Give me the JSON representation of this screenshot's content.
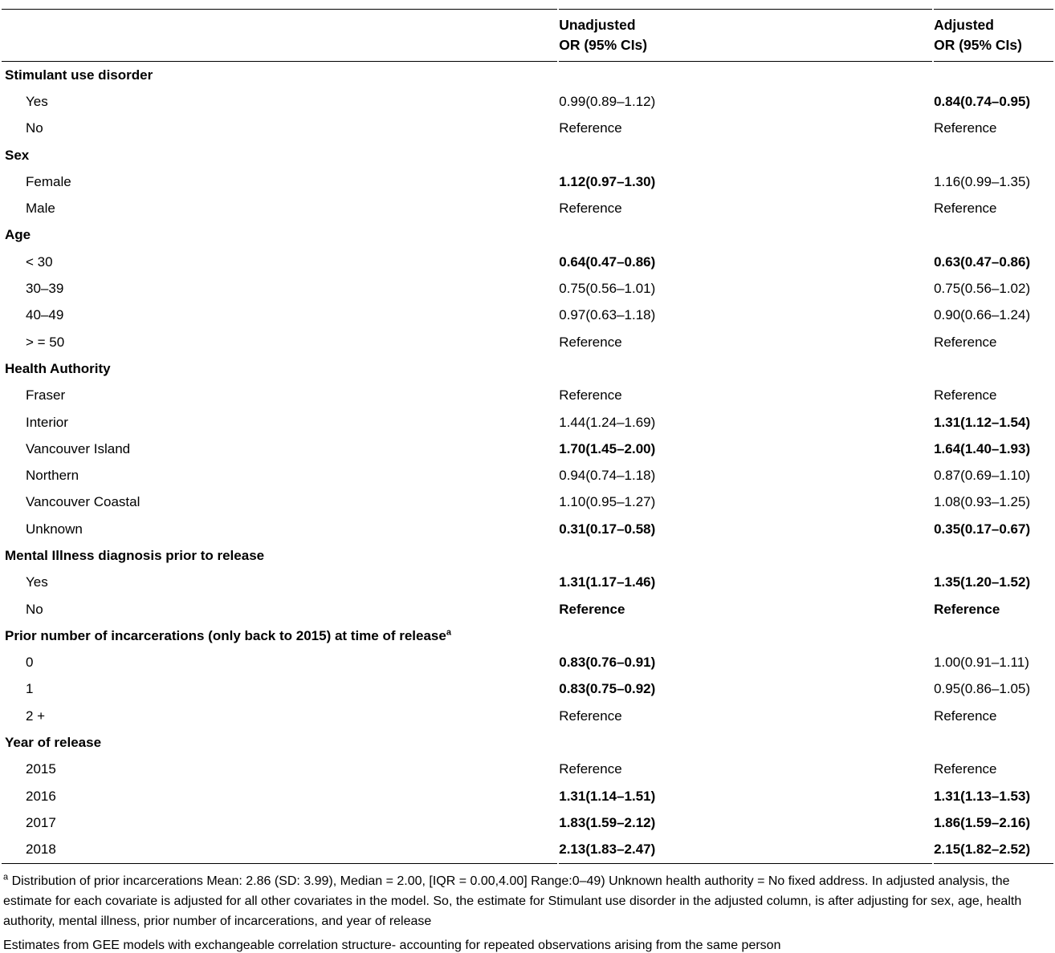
{
  "header": {
    "unadjusted_line1": "Unadjusted",
    "unadjusted_line2": "OR (95% CIs)",
    "adjusted_line1": "Adjusted",
    "adjusted_line2": "OR (95% CIs)"
  },
  "chart_data": {
    "type": "table",
    "columns": [
      "",
      "Unadjusted OR (95% CIs)",
      "Adjusted OR (95% CIs)"
    ]
  },
  "sections": [
    {
      "label": "Stimulant use disorder",
      "rows": [
        {
          "label": "Yes",
          "unadjusted": "0.99(0.89–1.12)",
          "unadjusted_bold": false,
          "adjusted": "0.84(0.74–0.95)",
          "adjusted_bold": true
        },
        {
          "label": "No",
          "unadjusted": "Reference",
          "unadjusted_bold": false,
          "adjusted": "Reference",
          "adjusted_bold": false
        }
      ]
    },
    {
      "label": "Sex",
      "rows": [
        {
          "label": "Female",
          "unadjusted": "1.12(0.97–1.30)",
          "unadjusted_bold": true,
          "adjusted": "1.16(0.99–1.35)",
          "adjusted_bold": false
        },
        {
          "label": "Male",
          "unadjusted": "Reference",
          "unadjusted_bold": false,
          "adjusted": "Reference",
          "adjusted_bold": false
        }
      ]
    },
    {
      "label": "Age",
      "rows": [
        {
          "label": "< 30",
          "unadjusted": "0.64(0.47–0.86)",
          "unadjusted_bold": true,
          "adjusted": "0.63(0.47–0.86)",
          "adjusted_bold": true
        },
        {
          "label": "30–39",
          "unadjusted": "0.75(0.56–1.01)",
          "unadjusted_bold": false,
          "adjusted": "0.75(0.56–1.02)",
          "adjusted_bold": false
        },
        {
          "label": "40–49",
          "unadjusted": "0.97(0.63–1.18)",
          "unadjusted_bold": false,
          "adjusted": "0.90(0.66–1.24)",
          "adjusted_bold": false
        },
        {
          "label": "> = 50",
          "unadjusted": "Reference",
          "unadjusted_bold": false,
          "adjusted": "Reference",
          "adjusted_bold": false
        }
      ]
    },
    {
      "label": "Health Authority",
      "rows": [
        {
          "label": "Fraser",
          "unadjusted": "Reference",
          "unadjusted_bold": false,
          "adjusted": "Reference",
          "adjusted_bold": false
        },
        {
          "label": "Interior",
          "unadjusted": "1.44(1.24–1.69)",
          "unadjusted_bold": false,
          "adjusted": "1.31(1.12–1.54)",
          "adjusted_bold": true
        },
        {
          "label": "Vancouver Island",
          "unadjusted": "1.70(1.45–2.00)",
          "unadjusted_bold": true,
          "adjusted": "1.64(1.40–1.93)",
          "adjusted_bold": true
        },
        {
          "label": "Northern",
          "unadjusted": "0.94(0.74–1.18)",
          "unadjusted_bold": false,
          "adjusted": "0.87(0.69–1.10)",
          "adjusted_bold": false
        },
        {
          "label": "Vancouver Coastal",
          "unadjusted": "1.10(0.95–1.27)",
          "unadjusted_bold": false,
          "adjusted": "1.08(0.93–1.25)",
          "adjusted_bold": false
        },
        {
          "label": "Unknown",
          "unadjusted": "0.31(0.17–0.58)",
          "unadjusted_bold": true,
          "adjusted": "0.35(0.17–0.67)",
          "adjusted_bold": true
        }
      ]
    },
    {
      "label": "Mental Illness diagnosis prior to release",
      "rows": [
        {
          "label": "Yes",
          "unadjusted": "1.31(1.17–1.46)",
          "unadjusted_bold": true,
          "adjusted": "1.35(1.20–1.52)",
          "adjusted_bold": true
        },
        {
          "label": "No",
          "unadjusted": "Reference",
          "unadjusted_bold": true,
          "adjusted": "Reference",
          "adjusted_bold": true
        }
      ]
    },
    {
      "label": "Prior number of incarcerations (only back to 2015) at time of release",
      "label_sup": "a",
      "rows": [
        {
          "label": "0",
          "unadjusted": "0.83(0.76–0.91)",
          "unadjusted_bold": true,
          "adjusted": "1.00(0.91–1.11)",
          "adjusted_bold": false
        },
        {
          "label": "1",
          "unadjusted": "0.83(0.75–0.92)",
          "unadjusted_bold": true,
          "adjusted": "0.95(0.86–1.05)",
          "adjusted_bold": false
        },
        {
          "label": "2 +",
          "unadjusted": "Reference",
          "unadjusted_bold": false,
          "adjusted": "Reference",
          "adjusted_bold": false
        }
      ]
    },
    {
      "label": "Year of release",
      "rows": [
        {
          "label": "2015",
          "unadjusted": "Reference",
          "unadjusted_bold": false,
          "adjusted": "Reference",
          "adjusted_bold": false
        },
        {
          "label": "2016",
          "unadjusted": "1.31(1.14–1.51)",
          "unadjusted_bold": true,
          "adjusted": "1.31(1.13–1.53)",
          "adjusted_bold": true
        },
        {
          "label": "2017",
          "unadjusted": "1.83(1.59–2.12)",
          "unadjusted_bold": true,
          "adjusted": "1.86(1.59–2.16)",
          "adjusted_bold": true
        },
        {
          "label": "2018",
          "unadjusted": "2.13(1.83–2.47)",
          "unadjusted_bold": true,
          "adjusted": "2.15(1.82–2.52)",
          "adjusted_bold": true
        }
      ]
    }
  ],
  "footnotes": {
    "note_a_sup": "a",
    "note_a": " Distribution of prior incarcerations Mean: 2.86 (SD: 3.99), Median = 2.00, [IQR = 0.00,4.00] Range:0–49) Unknown health authority = No fixed address. In adjusted analysis, the estimate for each covariate is adjusted for all other covariates in the model. So, the estimate for Stimulant use disorder in the adjusted column, is after adjusting for sex, age, health authority, mental illness, prior number of incarcerations, and year of release",
    "note_gee": "Estimates from GEE models with exchangeable correlation structure- accounting for repeated observations arising from the same person"
  },
  "colors": {
    "text": "#000000",
    "rule": "#000000",
    "background": "#ffffff"
  }
}
